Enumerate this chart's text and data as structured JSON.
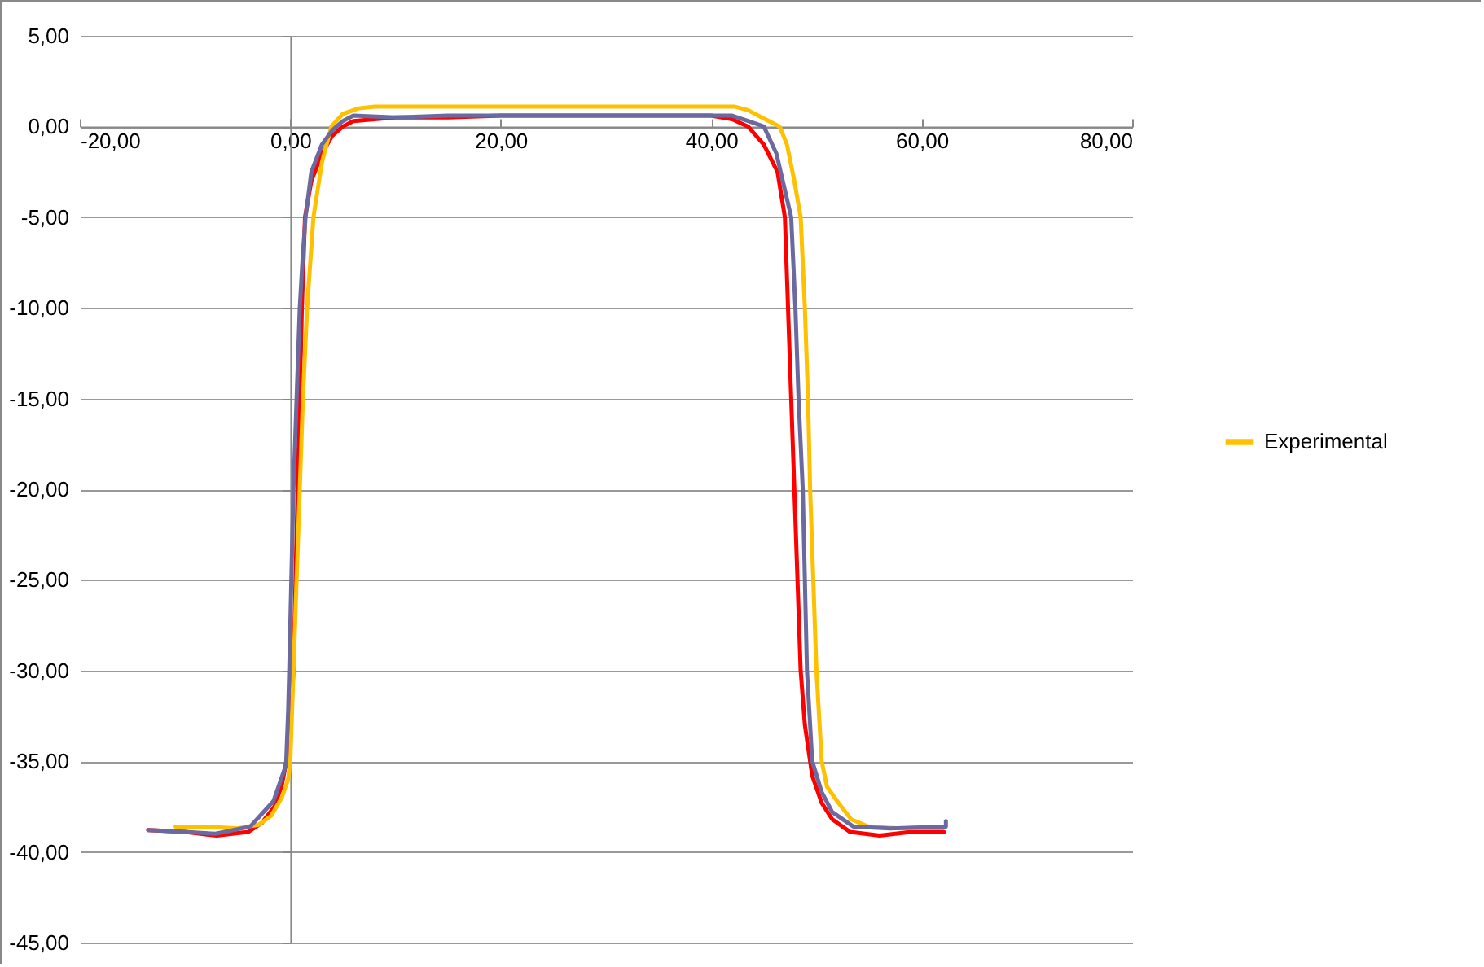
{
  "chart_data": {
    "type": "line",
    "xlim": [
      -20,
      80
    ],
    "ylim": [
      -45,
      5
    ],
    "xticks": [
      {
        "value": -20,
        "label": "-20,00"
      },
      {
        "value": 0,
        "label": "0,00"
      },
      {
        "value": 20,
        "label": "20,00"
      },
      {
        "value": 40,
        "label": "40,00"
      },
      {
        "value": 60,
        "label": "60,00"
      },
      {
        "value": 80,
        "label": "80,00"
      }
    ],
    "yticks": [
      {
        "value": 5,
        "label": "5,00"
      },
      {
        "value": 0,
        "label": "0,00"
      },
      {
        "value": -5,
        "label": "-5,00"
      },
      {
        "value": -10,
        "label": "-10,00"
      },
      {
        "value": -15,
        "label": "-15,00"
      },
      {
        "value": -20,
        "label": "-20,00"
      },
      {
        "value": -25,
        "label": "-25,00"
      },
      {
        "value": -30,
        "label": "-30,00"
      },
      {
        "value": -35,
        "label": "-35,00"
      },
      {
        "value": -40,
        "label": "-40,00"
      },
      {
        "value": -45,
        "label": "-45,00"
      }
    ],
    "grid": "y",
    "legend": "right",
    "marker": "none",
    "line_style": "solid",
    "series": [
      {
        "color": "#ff0000",
        "x": [
          -13.5,
          -10,
          -7,
          -4,
          -2.7,
          -1.5,
          -0.8,
          -0.3,
          0,
          0.3,
          0.5,
          0.7,
          0.9,
          1.1,
          1.4,
          2,
          3,
          4,
          5,
          6,
          8,
          10,
          15,
          20,
          30,
          40,
          42,
          43.5,
          45,
          46.3,
          47,
          47.3,
          47.6,
          47.9,
          48.2,
          48.5,
          48.9,
          49.6,
          50.5,
          51.5,
          53.2,
          56,
          59,
          62.1
        ],
        "values": [
          -38.8,
          -38.9,
          -39.1,
          -38.9,
          -38.4,
          -37.5,
          -36.3,
          -34.8,
          -33,
          -30,
          -25,
          -20,
          -15,
          -10,
          -5,
          -3,
          -1.5,
          -0.5,
          0,
          0.3,
          0.4,
          0.5,
          0.5,
          0.6,
          0.6,
          0.6,
          0.4,
          0,
          -1,
          -2.5,
          -5,
          -10,
          -15,
          -20,
          -25,
          -30,
          -33,
          -35.8,
          -37.3,
          -38.2,
          -38.9,
          -39.1,
          -38.9,
          -38.9
        ]
      },
      {
        "name": "Experimental",
        "color": "#ffc000",
        "x": [
          -10.9,
          -8,
          -5,
          -3,
          -1.8,
          -0.8,
          -0.2,
          0,
          0.3,
          0.6,
          0.9,
          1.2,
          1.6,
          2.2,
          3,
          3.9,
          5,
          6.5,
          8,
          20,
          42.2,
          43.5,
          44.8,
          46.5,
          47.2,
          47.9,
          48.5,
          48.9,
          49.2,
          49.4,
          49.7,
          50,
          50.3,
          50.5,
          51,
          52.1,
          53.3,
          54.9,
          58,
          62.1
        ],
        "values": [
          -38.6,
          -38.6,
          -38.7,
          -38.5,
          -38,
          -37,
          -36,
          -35,
          -30,
          -25,
          -20,
          -15,
          -10,
          -5,
          -2,
          0,
          0.7,
          1,
          1.1,
          1.1,
          1.1,
          0.9,
          0.5,
          0,
          -1,
          -3,
          -5,
          -10,
          -15,
          -20,
          -25,
          -30,
          -33,
          -35,
          -36.4,
          -37.3,
          -38.2,
          -38.6,
          -38.7,
          -38.6
        ]
      },
      {
        "color": "#6a6aa0",
        "x": [
          -13.5,
          -10,
          -7.1,
          -3.8,
          -1.6,
          -0.4,
          -0.2,
          -0.1,
          0.1,
          0.3,
          0.6,
          0.9,
          1.2,
          1.45,
          2,
          3,
          4,
          5,
          6,
          10,
          15,
          20,
          30,
          42,
          43.5,
          45,
          46.2,
          47,
          47.6,
          48,
          48.3,
          48.7,
          49.1,
          49.6,
          50.5,
          51.5,
          53.5,
          57,
          62.3,
          62.3
        ],
        "values": [
          -38.8,
          -38.9,
          -39,
          -38.6,
          -37.2,
          -35.2,
          -32.2,
          -30,
          -25,
          -20,
          -15,
          -10,
          -7,
          -5,
          -2.5,
          -1,
          -0.2,
          0.3,
          0.6,
          0.5,
          0.6,
          0.6,
          0.6,
          0.6,
          0.3,
          0,
          -1.5,
          -3.5,
          -5,
          -10,
          -15,
          -20,
          -30,
          -35,
          -36.7,
          -37.8,
          -38.6,
          -38.7,
          -38.6,
          -38.3
        ]
      }
    ]
  }
}
